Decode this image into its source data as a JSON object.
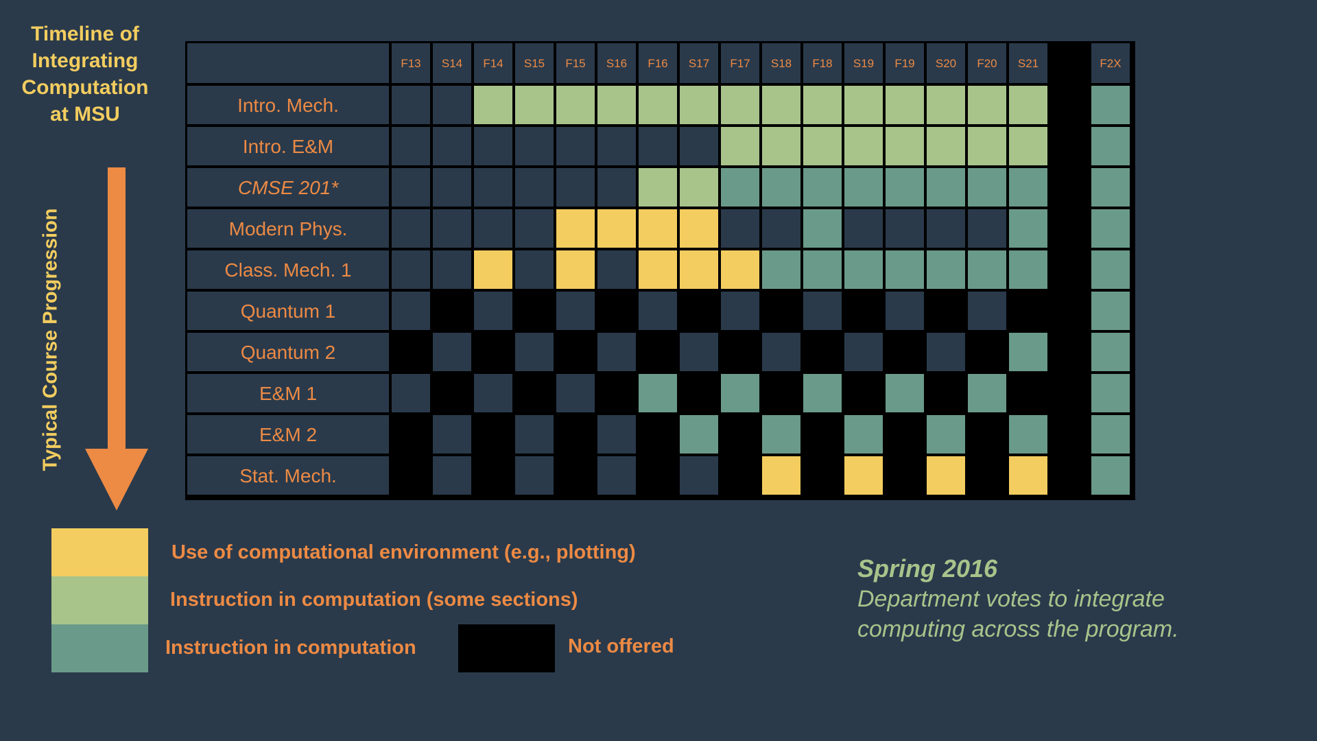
{
  "title": "Timeline of\nIntegrating\nComputation\nat MSU",
  "progression_label": "Typical Course Progression",
  "colors": {
    "background": "#2a3a4b",
    "cell_empty": "#2a3a4b",
    "plotting": "#f3cd5f",
    "some_sections": "#a8c48b",
    "instruction": "#6a9a8a",
    "not_offered": "#000000",
    "label_orange": "#ed8a44",
    "title_yellow": "#f3cd5f",
    "note_green": "#a8c48b"
  },
  "chart_data": {
    "type": "heatmap",
    "title": "Timeline of Integrating Computation at MSU",
    "columns": [
      "F13",
      "S14",
      "F14",
      "S15",
      "F15",
      "S16",
      "F16",
      "S17",
      "F17",
      "S18",
      "F18",
      "S19",
      "F19",
      "S20",
      "F20",
      "S21",
      "",
      "F2X"
    ],
    "rows": [
      {
        "label": "Intro. Mech.",
        "italic": false,
        "cells": [
          "n",
          "n",
          "g",
          "g",
          "g",
          "g",
          "g",
          "g",
          "g",
          "g",
          "g",
          "g",
          "g",
          "g",
          "g",
          "g",
          "x",
          "t"
        ]
      },
      {
        "label": "Intro. E&M",
        "italic": false,
        "cells": [
          "n",
          "n",
          "n",
          "n",
          "n",
          "n",
          "n",
          "n",
          "g",
          "g",
          "g",
          "g",
          "g",
          "g",
          "g",
          "g",
          "x",
          "t"
        ]
      },
      {
        "label": "CMSE 201*",
        "italic": true,
        "cells": [
          "n",
          "n",
          "n",
          "n",
          "n",
          "n",
          "g",
          "g",
          "t",
          "t",
          "t",
          "t",
          "t",
          "t",
          "t",
          "t",
          "x",
          "t"
        ]
      },
      {
        "label": "Modern Phys.",
        "italic": false,
        "cells": [
          "n",
          "n",
          "n",
          "n",
          "y",
          "y",
          "y",
          "y",
          "n",
          "n",
          "t",
          "n",
          "n",
          "n",
          "n",
          "t",
          "x",
          "t"
        ]
      },
      {
        "label": "Class. Mech. 1",
        "italic": false,
        "cells": [
          "n",
          "n",
          "y",
          "n",
          "y",
          "n",
          "y",
          "y",
          "y",
          "t",
          "t",
          "t",
          "t",
          "t",
          "t",
          "t",
          "x",
          "t"
        ]
      },
      {
        "label": "Quantum 1",
        "italic": false,
        "cells": [
          "n",
          "x",
          "n",
          "x",
          "n",
          "x",
          "n",
          "x",
          "n",
          "x",
          "n",
          "x",
          "n",
          "x",
          "n",
          "x",
          "x",
          "t"
        ]
      },
      {
        "label": "Quantum 2",
        "italic": false,
        "cells": [
          "x",
          "n",
          "x",
          "n",
          "x",
          "n",
          "x",
          "n",
          "x",
          "n",
          "x",
          "n",
          "x",
          "n",
          "x",
          "t",
          "x",
          "t"
        ]
      },
      {
        "label": "E&M 1",
        "italic": false,
        "cells": [
          "n",
          "x",
          "n",
          "x",
          "n",
          "x",
          "t",
          "x",
          "t",
          "x",
          "t",
          "x",
          "t",
          "x",
          "t",
          "x",
          "x",
          "t"
        ]
      },
      {
        "label": "E&M 2",
        "italic": false,
        "cells": [
          "x",
          "n",
          "x",
          "n",
          "x",
          "n",
          "x",
          "t",
          "x",
          "t",
          "x",
          "t",
          "x",
          "t",
          "x",
          "t",
          "x",
          "t"
        ]
      },
      {
        "label": "Stat. Mech.",
        "italic": false,
        "cells": [
          "x",
          "n",
          "x",
          "n",
          "x",
          "n",
          "x",
          "n",
          "x",
          "y",
          "x",
          "y",
          "x",
          "y",
          "x",
          "y",
          "x",
          "t"
        ]
      }
    ],
    "legend": [
      {
        "key": "y",
        "label": "Use of computational environment (e.g., plotting)"
      },
      {
        "key": "g",
        "label": "Instruction in computation (some sections)"
      },
      {
        "key": "t",
        "label": "Instruction in computation"
      },
      {
        "key": "x",
        "label": "Not offered"
      }
    ]
  },
  "note": {
    "heading": "Spring 2016",
    "body": "Department votes to integrate\ncomputing across the program."
  }
}
